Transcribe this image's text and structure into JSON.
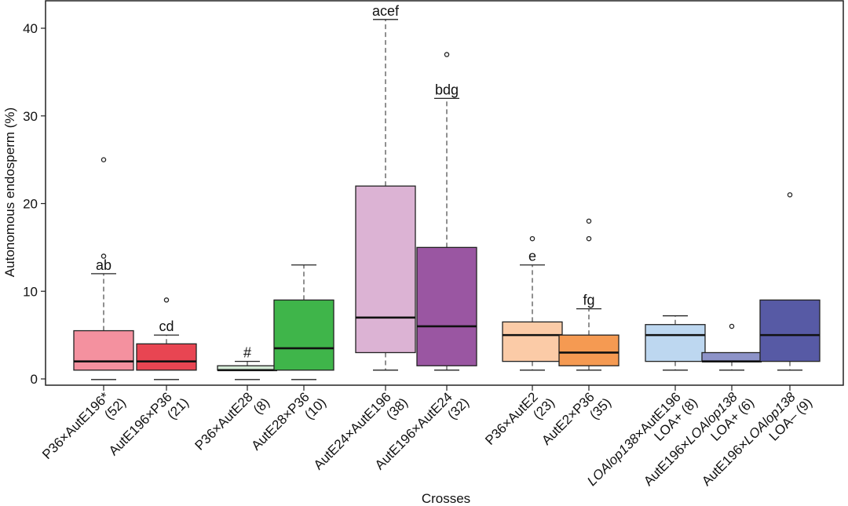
{
  "chart_data": {
    "type": "box",
    "xlabel": "Crosses",
    "ylabel": "Autonomous endosperm (%)",
    "ylim": [
      -0.5,
      43
    ],
    "yticks": [
      0,
      10,
      20,
      30,
      40
    ],
    "grid": false,
    "legend": "none",
    "groups": [
      {
        "label": "P36×AutE196*",
        "n": "(52)",
        "color": "#f4919f",
        "low": 1,
        "q1": 1,
        "median": 2,
        "q3": 5.5,
        "high": 12,
        "outliers": [
          14,
          25
        ],
        "annotation": "ab"
      },
      {
        "label": "AutE196×P36",
        "n": "(21)",
        "color": "#e84552",
        "low": 1,
        "q1": 1,
        "median": 2,
        "q3": 4,
        "high": 5,
        "outliers": [
          9
        ],
        "annotation": "cd"
      },
      {
        "label": "P36×AutE28",
        "n": "(8)",
        "color": "#d4ead6",
        "low": 1,
        "q1": 1,
        "median": 1,
        "q3": 1.5,
        "high": 2,
        "outliers": [],
        "annotation": "#"
      },
      {
        "label": "AutE28×P36",
        "n": "(10)",
        "color": "#3fb54a",
        "low": 1,
        "q1": 1,
        "median": 3.5,
        "q3": 9,
        "high": 13,
        "outliers": [],
        "annotation": ""
      },
      {
        "label": "AutE24×AutE196",
        "n": "(38)",
        "color": "#dcb3d4",
        "low": 1,
        "q1": 3,
        "median": 7,
        "q3": 22,
        "high": 41,
        "outliers": [],
        "annotation": "acef"
      },
      {
        "label": "AutE196×AutE24",
        "n": "(32)",
        "color": "#9a56a2",
        "low": 1,
        "q1": 1.5,
        "median": 6,
        "q3": 15,
        "high": 32,
        "outliers": [
          37
        ],
        "annotation": "bdg"
      },
      {
        "label": "P36×AutE2",
        "n": "(23)",
        "color": "#fbcba7",
        "low": 1,
        "q1": 2,
        "median": 5,
        "q3": 6.5,
        "high": 13,
        "outliers": [
          16
        ],
        "annotation": "e"
      },
      {
        "label": "AutE2×P36",
        "n": "(35)",
        "color": "#f59a52",
        "low": 1,
        "q1": 1.5,
        "median": 3,
        "q3": 5,
        "high": 8,
        "outliers": [
          16,
          18
        ],
        "annotation": "fg"
      },
      {
        "label": "LOAlop138×AutE196",
        "n": "LOA+ (8)",
        "color": "#bdd7f0",
        "low": 1,
        "q1": 2,
        "median": 5,
        "q3": 6.2,
        "high": 7.2,
        "outliers": [],
        "annotation": ""
      },
      {
        "label": "AutE196×LOAlop138",
        "n": "LOA+ (6)",
        "color": "#8d93c8",
        "low": 1,
        "q1": 2,
        "median": 2,
        "q3": 3,
        "high": 3,
        "outliers": [
          6
        ],
        "annotation": ""
      },
      {
        "label": "AutE196×LOAlop138",
        "n": "LOA– (9)",
        "color": "#575aa5",
        "low": 1,
        "q1": 2,
        "median": 5,
        "q3": 9,
        "high": 9,
        "outliers": [
          21
        ],
        "annotation": ""
      }
    ]
  }
}
